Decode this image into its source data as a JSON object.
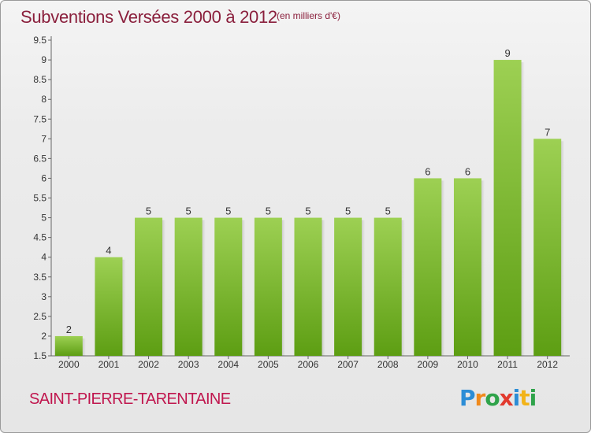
{
  "header": {
    "title": "Subventions Versées 2000 à 2012",
    "subtitle": "(en milliers d'€)"
  },
  "footer": {
    "commune": "SAINT-PIERRE-TARENTAINE",
    "logo": "Proxiti"
  },
  "colors": {
    "bar_top": "#9dd053",
    "bar_bottom": "#5d9e13",
    "title": "#8a1f3c",
    "commune": "#c0164e"
  },
  "chart_data": {
    "type": "bar",
    "title": "Subventions Versées 2000 à 2012",
    "categories": [
      "2000",
      "2001",
      "2002",
      "2003",
      "2004",
      "2005",
      "2006",
      "2007",
      "2008",
      "2009",
      "2010",
      "2011",
      "2012"
    ],
    "values": [
      2,
      4,
      5,
      5,
      5,
      5,
      5,
      5,
      5,
      6,
      6,
      9,
      7
    ],
    "ylim": [
      1.5,
      9.5
    ],
    "yticks": [
      "1.5",
      "2",
      "2.5",
      "3",
      "3.5",
      "4",
      "4.5",
      "5",
      "5.5",
      "6",
      "6.5",
      "7",
      "7.5",
      "8",
      "8.5",
      "9",
      "9.5"
    ],
    "xlabel": "",
    "ylabel": "",
    "grid": false,
    "legend": "none"
  }
}
